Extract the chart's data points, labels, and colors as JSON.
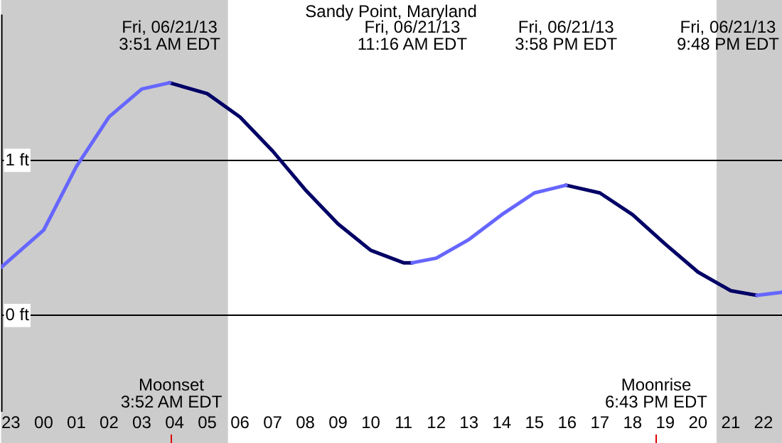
{
  "chart_data": {
    "type": "line",
    "title": "Sandy Point, Maryland",
    "xlim": [
      "--06-20T22:42",
      "--06-21T22:34"
    ],
    "ylim": [
      -0.62,
      1.94
    ],
    "xticks": [
      {
        "value": "--06-20T23:00",
        "label": "23"
      },
      {
        "value": "--06-21T00:00",
        "label": "00"
      },
      {
        "value": "--06-21T01:00",
        "label": "01"
      },
      {
        "value": "--06-21T02:00",
        "label": "02"
      },
      {
        "value": "--06-21T03:00",
        "label": "03"
      },
      {
        "value": "--06-21T04:00",
        "label": "04"
      },
      {
        "value": "--06-21T05:00",
        "label": "05"
      },
      {
        "value": "--06-21T06:00",
        "label": "06"
      },
      {
        "value": "--06-21T07:00",
        "label": "07"
      },
      {
        "value": "--06-21T08:00",
        "label": "08"
      },
      {
        "value": "--06-21T09:00",
        "label": "09"
      },
      {
        "value": "--06-21T10:00",
        "label": "10"
      },
      {
        "value": "--06-21T11:00",
        "label": "11"
      },
      {
        "value": "--06-21T12:00",
        "label": "12"
      },
      {
        "value": "--06-21T13:00",
        "label": "13"
      },
      {
        "value": "--06-21T14:00",
        "label": "14"
      },
      {
        "value": "--06-21T15:00",
        "label": "15"
      },
      {
        "value": "--06-21T16:00",
        "label": "16"
      },
      {
        "value": "--06-21T17:00",
        "label": "17"
      },
      {
        "value": "--06-21T18:00",
        "label": "18"
      },
      {
        "value": "--06-21T19:00",
        "label": "19"
      },
      {
        "value": "--06-21T20:00",
        "label": "20"
      },
      {
        "value": "--06-21T21:00",
        "label": "21"
      },
      {
        "value": "--06-21T22:00",
        "label": "22"
      }
    ],
    "yticks": [
      {
        "value": 0,
        "label": "0 ft"
      },
      {
        "value": 1,
        "label": "1 ft"
      }
    ],
    "grid": "y",
    "legend": false,
    "series": [
      {
        "color": "#6666ff",
        "x": [
          "--06-20T22:42",
          "--06-21T00:00",
          "--06-21T01:00",
          "--06-21T02:00",
          "--06-21T03:00",
          "--06-21T03:51",
          null,
          "--06-21T11:16",
          "--06-21T12:00",
          "--06-21T13:00",
          "--06-21T14:00",
          "--06-21T15:00",
          "--06-21T15:58",
          null,
          "--06-21T21:48",
          "--06-21T22:34"
        ],
        "values": [
          0.31,
          0.55,
          0.96,
          1.28,
          1.46,
          1.5,
          null,
          0.34,
          0.37,
          0.49,
          0.65,
          0.79,
          0.84,
          null,
          0.13,
          0.15
        ]
      },
      {
        "color": "#000066",
        "x": [
          "--06-21T03:51",
          "--06-21T05:00",
          "--06-21T06:00",
          "--06-21T07:00",
          "--06-21T08:00",
          "--06-21T09:00",
          "--06-21T10:00",
          "--06-21T11:00",
          "--06-21T11:16",
          null,
          "--06-21T15:58",
          "--06-21T17:00",
          "--06-21T18:00",
          "--06-21T19:00",
          "--06-21T20:00",
          "--06-21T21:00",
          "--06-21T21:48"
        ],
        "values": [
          1.5,
          1.43,
          1.28,
          1.06,
          0.81,
          0.59,
          0.42,
          0.34,
          0.34,
          null,
          0.84,
          0.79,
          0.65,
          0.46,
          0.28,
          0.16,
          0.13
        ]
      }
    ],
    "bands": [
      {
        "axis": "x",
        "from": "--06-20T22:42",
        "to": "--06-21T05:38",
        "color": "#cccccc"
      },
      {
        "axis": "x",
        "from": "--06-21T20:34",
        "to": "--06-21T22:34",
        "color": "#cccccc"
      }
    ],
    "ref_lines": [
      {
        "axis": "x",
        "value": "--06-21T03:52",
        "label": "Moonset\n3:52 AM EDT",
        "color": "#dd0000"
      },
      {
        "axis": "x",
        "value": "--06-21T18:43",
        "label": "Moonrise\n6:43 PM EDT",
        "color": "#dd0000"
      }
    ],
    "annotations": [
      "Fri, 06/21/13\n3:51 AM EDT",
      "Fri, 06/21/13\n11:16 AM EDT",
      "Fri, 06/21/13\n3:58 PM EDT",
      "Fri, 06/21/13\n9:48 PM EDT"
    ]
  }
}
